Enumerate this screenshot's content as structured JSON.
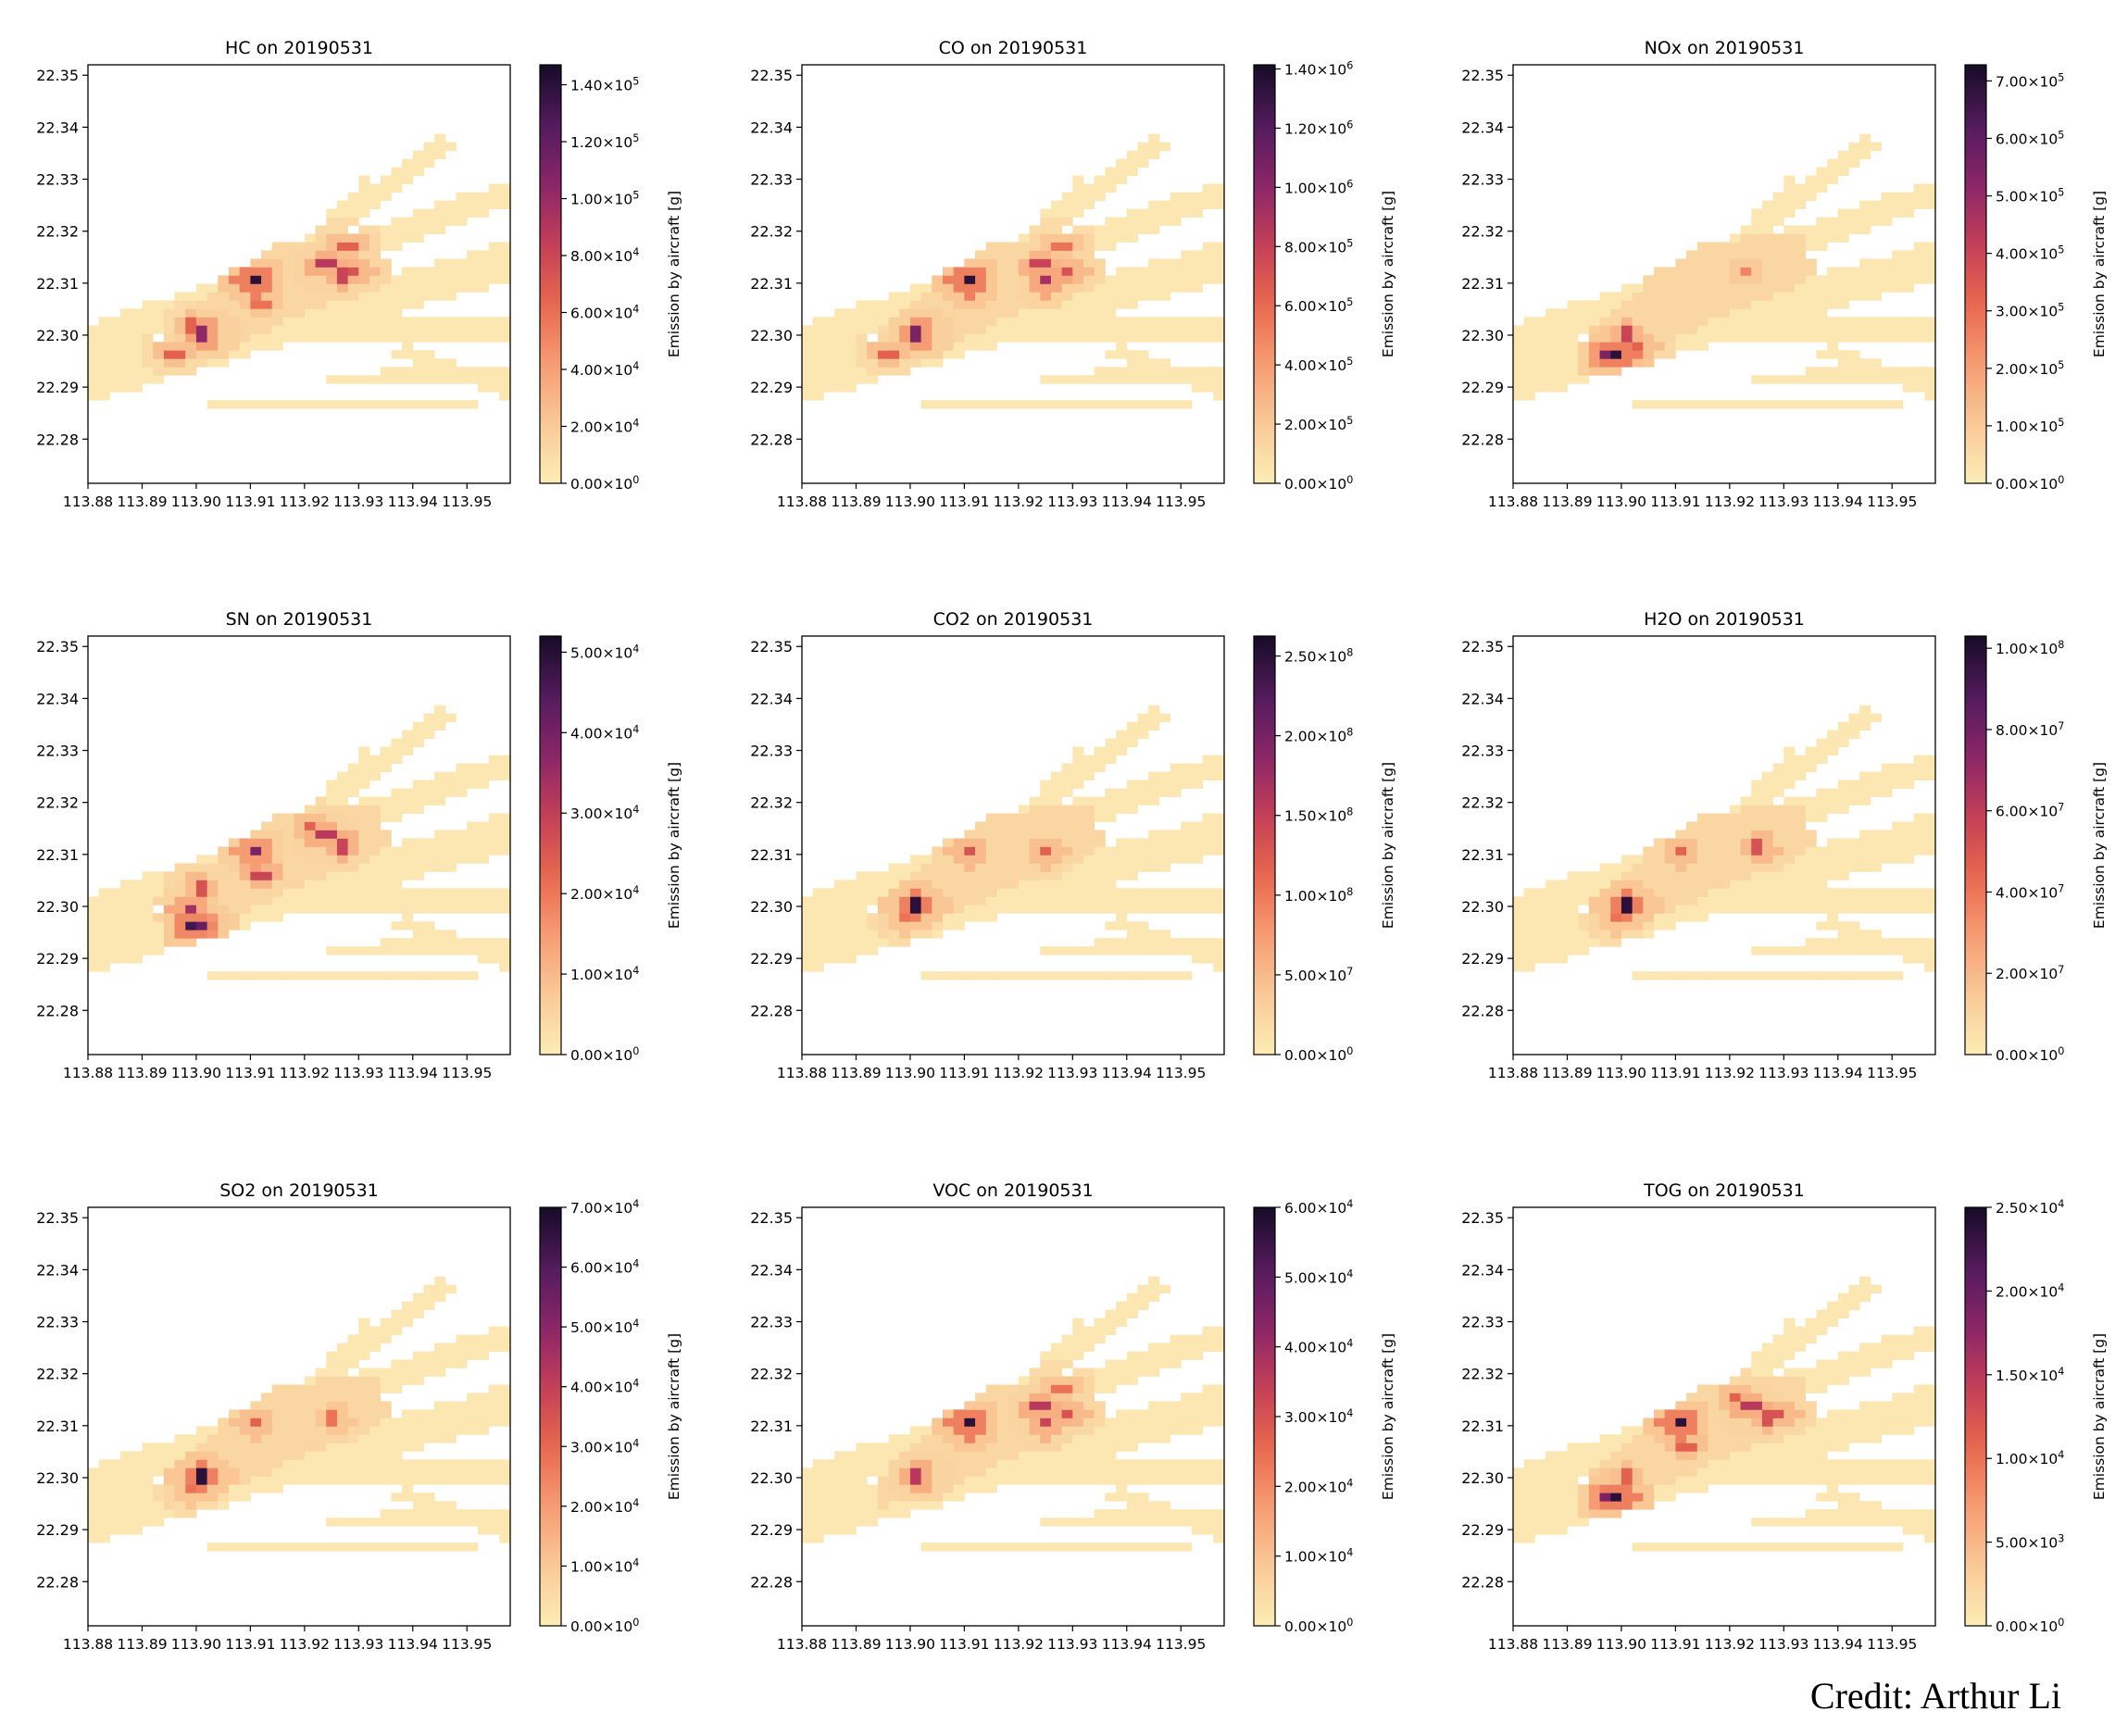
{
  "credit": "Credit: Arthur Li",
  "colormap": [
    "#fcecb6",
    "#f9c996",
    "#f69c73",
    "#e8674d",
    "#c33e58",
    "#8a2668",
    "#521b5c",
    "#160b26"
  ],
  "chart_data": [
    {
      "type": "heatmap",
      "pollutant": "HC",
      "date": "20190531",
      "title": "HC on 20190531",
      "cbar_label": "Emission by aircraft [g]",
      "cbar_ticks": [
        "0.00×10^0",
        "2.00×10^4",
        "4.00×10^4",
        "6.00×10^4",
        "8.00×10^4",
        "1.00×10^5",
        "1.20×10^5",
        "1.40×10^5"
      ],
      "cbar_max_fraction": 1.05,
      "xticks": [
        "113.88",
        "113.89",
        "113.90",
        "113.91",
        "113.92",
        "113.93",
        "113.94",
        "113.95"
      ],
      "yticks": [
        "22.35",
        "22.34",
        "22.33",
        "22.32",
        "22.31",
        "22.30",
        "22.29",
        "22.28"
      ],
      "xlim": [
        113.88,
        113.958
      ],
      "ylim": [
        22.2715,
        22.352
      ],
      "hotspots": [
        {
          "lon": 113.9105,
          "lat": 22.3103,
          "level": 0.95
        },
        {
          "lon": 113.9015,
          "lat": 22.3003,
          "level": 0.7
        },
        {
          "lon": 113.924,
          "lat": 22.3136,
          "level": 0.6
        },
        {
          "lon": 113.927,
          "lat": 22.3116,
          "level": 0.55
        },
        {
          "lon": 113.9295,
          "lat": 22.3125,
          "level": 0.5
        },
        {
          "lon": 113.8995,
          "lat": 22.3016,
          "level": 0.45
        },
        {
          "lon": 113.896,
          "lat": 22.2965,
          "level": 0.45
        },
        {
          "lon": 113.928,
          "lat": 22.3175,
          "level": 0.45
        },
        {
          "lon": 113.912,
          "lat": 22.306,
          "level": 0.4
        }
      ]
    },
    {
      "type": "heatmap",
      "pollutant": "CO",
      "date": "20190531",
      "title": "CO on 20190531",
      "cbar_label": "Emission by aircraft [g]",
      "cbar_ticks": [
        "0.00×10^0",
        "2.00×10^5",
        "4.00×10^5",
        "6.00×10^5",
        "8.00×10^5",
        "1.00×10^6",
        "1.20×10^6",
        "1.40×10^6"
      ],
      "cbar_max_fraction": 1.01,
      "xticks": [
        "113.88",
        "113.89",
        "113.90",
        "113.91",
        "113.92",
        "113.93",
        "113.94",
        "113.95"
      ],
      "yticks": [
        "22.35",
        "22.34",
        "22.33",
        "22.32",
        "22.31",
        "22.30",
        "22.29",
        "22.28"
      ],
      "xlim": [
        113.88,
        113.958
      ],
      "ylim": [
        22.2715,
        22.352
      ],
      "hotspots": [
        {
          "lon": 113.9105,
          "lat": 22.3103,
          "level": 0.95
        },
        {
          "lon": 113.9015,
          "lat": 22.3003,
          "level": 0.75
        },
        {
          "lon": 113.9255,
          "lat": 22.3103,
          "level": 0.65
        },
        {
          "lon": 113.924,
          "lat": 22.3136,
          "level": 0.55
        },
        {
          "lon": 113.9295,
          "lat": 22.3125,
          "level": 0.5
        },
        {
          "lon": 113.896,
          "lat": 22.2965,
          "level": 0.45
        },
        {
          "lon": 113.928,
          "lat": 22.3175,
          "level": 0.4
        }
      ]
    },
    {
      "type": "heatmap",
      "pollutant": "NOx",
      "date": "20190531",
      "title": "NOx on 20190531",
      "cbar_label": "Emission by aircraft [g]",
      "cbar_ticks": [
        "0.00×10^0",
        "1.00×10^5",
        "2.00×10^5",
        "3.00×10^5",
        "4.00×10^5",
        "5.00×10^5",
        "6.00×10^5",
        "7.00×10^5"
      ],
      "cbar_max_fraction": 1.04,
      "xticks": [
        "113.88",
        "113.89",
        "113.90",
        "113.91",
        "113.92",
        "113.93",
        "113.94",
        "113.95"
      ],
      "yticks": [
        "22.35",
        "22.34",
        "22.33",
        "22.32",
        "22.31",
        "22.30",
        "22.29",
        "22.28"
      ],
      "xlim": [
        113.88,
        113.958
      ],
      "ylim": [
        22.2715,
        22.352
      ],
      "hotspots": [
        {
          "lon": 113.8995,
          "lat": 22.2965,
          "level": 0.95
        },
        {
          "lon": 113.8975,
          "lat": 22.2965,
          "level": 0.75
        },
        {
          "lon": 113.901,
          "lat": 22.3003,
          "level": 0.55
        },
        {
          "lon": 113.9035,
          "lat": 22.2975,
          "level": 0.45
        },
        {
          "lon": 113.923,
          "lat": 22.312,
          "level": 0.35
        }
      ]
    },
    {
      "type": "heatmap",
      "pollutant": "SN",
      "date": "20190531",
      "title": "SN on 20190531",
      "cbar_label": "Emission by aircraft [g]",
      "cbar_ticks": [
        "0.00×10^0",
        "1.00×10^4",
        "2.00×10^4",
        "3.00×10^4",
        "4.00×10^4",
        "5.00×10^4"
      ],
      "cbar_max_fraction": 1.04,
      "xticks": [
        "113.88",
        "113.89",
        "113.90",
        "113.91",
        "113.92",
        "113.93",
        "113.94",
        "113.95"
      ],
      "yticks": [
        "22.35",
        "22.34",
        "22.33",
        "22.32",
        "22.31",
        "22.30",
        "22.29",
        "22.28"
      ],
      "xlim": [
        113.88,
        113.958
      ],
      "ylim": [
        22.2715,
        22.352
      ],
      "hotspots": [
        {
          "lon": 113.8995,
          "lat": 22.2965,
          "level": 0.9
        },
        {
          "lon": 113.901,
          "lat": 22.2965,
          "level": 0.8
        },
        {
          "lon": 113.9105,
          "lat": 22.3103,
          "level": 0.75
        },
        {
          "lon": 113.8985,
          "lat": 22.2995,
          "level": 0.65
        },
        {
          "lon": 113.924,
          "lat": 22.3136,
          "level": 0.6
        },
        {
          "lon": 113.927,
          "lat": 22.3116,
          "level": 0.55
        },
        {
          "lon": 113.912,
          "lat": 22.306,
          "level": 0.55
        },
        {
          "lon": 113.9005,
          "lat": 22.3035,
          "level": 0.5
        },
        {
          "lon": 113.9215,
          "lat": 22.3155,
          "level": 0.45
        }
      ]
    },
    {
      "type": "heatmap",
      "pollutant": "CO2",
      "date": "20190531",
      "title": "CO2 on 20190531",
      "cbar_label": "Emission by aircraft [g]",
      "cbar_ticks": [
        "0.00×10^0",
        "5.00×10^7",
        "1.00×10^8",
        "1.50×10^8",
        "2.00×10^8",
        "2.50×10^8"
      ],
      "cbar_max_fraction": 1.05,
      "xticks": [
        "113.88",
        "113.89",
        "113.90",
        "113.91",
        "113.92",
        "113.93",
        "113.94",
        "113.95"
      ],
      "yticks": [
        "22.35",
        "22.34",
        "22.33",
        "22.32",
        "22.31",
        "22.30",
        "22.29",
        "22.28"
      ],
      "xlim": [
        113.88,
        113.958
      ],
      "ylim": [
        22.2715,
        22.352
      ],
      "hotspots": [
        {
          "lon": 113.901,
          "lat": 22.3003,
          "level": 0.95
        },
        {
          "lon": 113.9105,
          "lat": 22.3103,
          "level": 0.5
        },
        {
          "lon": 113.9255,
          "lat": 22.3103,
          "level": 0.45
        },
        {
          "lon": 113.899,
          "lat": 22.2975,
          "level": 0.4
        }
      ]
    },
    {
      "type": "heatmap",
      "pollutant": "H2O",
      "date": "20190531",
      "title": "H2O on 20190531",
      "cbar_label": "Emission by aircraft [g]",
      "cbar_ticks": [
        "0.00×10^0",
        "2.00×10^7",
        "4.00×10^7",
        "6.00×10^7",
        "8.00×10^7",
        "1.00×10^8"
      ],
      "cbar_max_fraction": 1.03,
      "xticks": [
        "113.88",
        "113.89",
        "113.90",
        "113.91",
        "113.92",
        "113.93",
        "113.94",
        "113.95"
      ],
      "yticks": [
        "22.35",
        "22.34",
        "22.33",
        "22.32",
        "22.31",
        "22.30",
        "22.29",
        "22.28"
      ],
      "xlim": [
        113.88,
        113.958
      ],
      "ylim": [
        22.2715,
        22.352
      ],
      "hotspots": [
        {
          "lon": 113.901,
          "lat": 22.3003,
          "level": 0.95
        },
        {
          "lon": 113.9255,
          "lat": 22.3113,
          "level": 0.5
        },
        {
          "lon": 113.911,
          "lat": 22.3103,
          "level": 0.45
        },
        {
          "lon": 113.899,
          "lat": 22.2975,
          "level": 0.4
        }
      ]
    },
    {
      "type": "heatmap",
      "pollutant": "SO2",
      "date": "20190531",
      "title": "SO2 on 20190531",
      "cbar_label": "Emission by aircraft [g]",
      "cbar_ticks": [
        "0.00×10^0",
        "1.00×10^4",
        "2.00×10^4",
        "3.00×10^4",
        "4.00×10^4",
        "5.00×10^4",
        "6.00×10^4",
        "7.00×10^4"
      ],
      "cbar_max_fraction": 1.0,
      "xticks": [
        "113.88",
        "113.89",
        "113.90",
        "113.91",
        "113.92",
        "113.93",
        "113.94",
        "113.95"
      ],
      "yticks": [
        "22.35",
        "22.34",
        "22.33",
        "22.32",
        "22.31",
        "22.30",
        "22.29",
        "22.28"
      ],
      "xlim": [
        113.88,
        113.958
      ],
      "ylim": [
        22.2715,
        22.352
      ],
      "hotspots": [
        {
          "lon": 113.901,
          "lat": 22.3003,
          "level": 0.95
        },
        {
          "lon": 113.9105,
          "lat": 22.3103,
          "level": 0.45
        },
        {
          "lon": 113.9255,
          "lat": 22.3113,
          "level": 0.4
        },
        {
          "lon": 113.899,
          "lat": 22.2975,
          "level": 0.4
        }
      ]
    },
    {
      "type": "heatmap",
      "pollutant": "VOC",
      "date": "20190531",
      "title": "VOC on 20190531",
      "cbar_label": "Emission by aircraft [g]",
      "cbar_ticks": [
        "0.00×10^0",
        "1.00×10^4",
        "2.00×10^4",
        "3.00×10^4",
        "4.00×10^4",
        "5.00×10^4",
        "6.00×10^4"
      ],
      "cbar_max_fraction": 1.0,
      "xticks": [
        "113.88",
        "113.89",
        "113.90",
        "113.91",
        "113.92",
        "113.93",
        "113.94",
        "113.95"
      ],
      "yticks": [
        "22.35",
        "22.34",
        "22.33",
        "22.32",
        "22.31",
        "22.30",
        "22.29",
        "22.28"
      ],
      "xlim": [
        113.88,
        113.958
      ],
      "ylim": [
        22.2715,
        22.352
      ],
      "hotspots": [
        {
          "lon": 113.9105,
          "lat": 22.3103,
          "level": 0.95
        },
        {
          "lon": 113.9015,
          "lat": 22.3003,
          "level": 0.6
        },
        {
          "lon": 113.924,
          "lat": 22.3136,
          "level": 0.6
        },
        {
          "lon": 113.9255,
          "lat": 22.3103,
          "level": 0.55
        },
        {
          "lon": 113.9295,
          "lat": 22.3125,
          "level": 0.5
        },
        {
          "lon": 113.928,
          "lat": 22.3175,
          "level": 0.4
        }
      ]
    },
    {
      "type": "heatmap",
      "pollutant": "TOG",
      "date": "20190531",
      "title": "TOG on 20190531",
      "cbar_label": "Emission by aircraft [g]",
      "cbar_ticks": [
        "0.00×10^0",
        "5.00×10^3",
        "1.00×10^4",
        "1.50×10^4",
        "2.00×10^4",
        "2.50×10^4"
      ],
      "cbar_max_fraction": 1.0,
      "xticks": [
        "113.88",
        "113.89",
        "113.90",
        "113.91",
        "113.92",
        "113.93",
        "113.94",
        "113.95"
      ],
      "yticks": [
        "22.35",
        "22.34",
        "22.33",
        "22.32",
        "22.31",
        "22.30",
        "22.29",
        "22.28"
      ],
      "xlim": [
        113.88,
        113.958
      ],
      "ylim": [
        22.2715,
        22.352
      ],
      "hotspots": [
        {
          "lon": 113.8995,
          "lat": 22.2965,
          "level": 0.95
        },
        {
          "lon": 113.9105,
          "lat": 22.3103,
          "level": 0.95
        },
        {
          "lon": 113.8975,
          "lat": 22.2965,
          "level": 0.75
        },
        {
          "lon": 113.924,
          "lat": 22.3136,
          "level": 0.6
        },
        {
          "lon": 113.927,
          "lat": 22.3116,
          "level": 0.5
        },
        {
          "lon": 113.9295,
          "lat": 22.3125,
          "level": 0.5
        },
        {
          "lon": 113.901,
          "lat": 22.3003,
          "level": 0.45
        },
        {
          "lon": 113.912,
          "lat": 22.306,
          "level": 0.45
        },
        {
          "lon": 113.9215,
          "lat": 22.3155,
          "level": 0.45
        }
      ]
    }
  ]
}
